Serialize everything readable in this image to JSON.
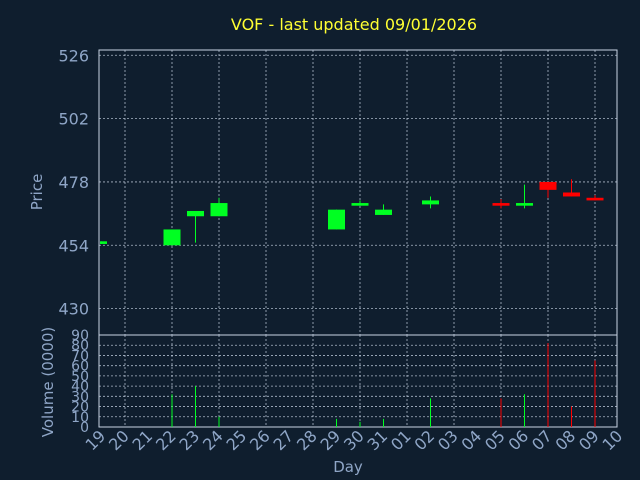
{
  "chart_data": {
    "type": "candlestick",
    "title": "VOF - last updated 09/01/2026",
    "xlabel": "Day",
    "price_panel": {
      "ylabel": "Price",
      "ylim": [
        420,
        528
      ],
      "yticks": [
        430,
        454,
        478,
        502,
        526
      ]
    },
    "volume_panel": {
      "ylabel": "Volume (0000)",
      "ylim": [
        0,
        90
      ],
      "yticks": [
        0,
        10,
        20,
        30,
        40,
        50,
        60,
        70,
        80,
        90
      ]
    },
    "x_ticks": [
      "19",
      "20",
      "21",
      "22",
      "23",
      "24",
      "25",
      "26",
      "27",
      "28",
      "29",
      "30",
      "31",
      "01",
      "02",
      "03",
      "04",
      "05",
      "06",
      "07",
      "08",
      "09",
      "10"
    ],
    "candles": [
      {
        "day": "19",
        "open": 454.5,
        "close": 455.5,
        "high": 455.5,
        "low": 454.5,
        "volume": 0
      },
      {
        "day": "22",
        "open": 454.0,
        "close": 460.0,
        "high": 460.0,
        "low": 454.0,
        "volume": 32
      },
      {
        "day": "23",
        "open": 465.0,
        "close": 467.0,
        "high": 467.0,
        "low": 455.0,
        "volume": 40
      },
      {
        "day": "24",
        "open": 465.0,
        "close": 470.0,
        "high": 472.0,
        "low": 465.0,
        "volume": 10
      },
      {
        "day": "29",
        "open": 460.0,
        "close": 467.5,
        "high": 467.5,
        "low": 460.0,
        "volume": 8
      },
      {
        "day": "30",
        "open": 469.0,
        "close": 470.0,
        "high": 471.0,
        "low": 469.0,
        "volume": 5
      },
      {
        "day": "31",
        "open": 465.5,
        "close": 467.5,
        "high": 469.5,
        "low": 465.5,
        "volume": 8
      },
      {
        "day": "02",
        "open": 469.5,
        "close": 471.0,
        "high": 472.5,
        "low": 468.0,
        "volume": 28
      },
      {
        "day": "05",
        "open": 470.0,
        "close": 469.0,
        "high": 471.5,
        "low": 468.0,
        "volume": 28
      },
      {
        "day": "06",
        "open": 469.0,
        "close": 470.0,
        "high": 477.0,
        "low": 468.0,
        "volume": 32
      },
      {
        "day": "07",
        "open": 478.0,
        "close": 475.0,
        "high": 478.0,
        "low": 472.0,
        "volume": 82
      },
      {
        "day": "08",
        "open": 474.0,
        "close": 472.5,
        "high": 479.0,
        "low": 472.5,
        "volume": 20
      },
      {
        "day": "09",
        "open": 472.0,
        "close": 471.0,
        "high": 473.0,
        "low": 471.0,
        "volume": 65
      }
    ],
    "colors": {
      "background": "#0f1e2e",
      "frame": "#c8d4e4",
      "up": "#00ff22",
      "down": "#ff0000",
      "title": "#ffff33",
      "axis_text": "#8fa6c7"
    },
    "grid": true
  }
}
